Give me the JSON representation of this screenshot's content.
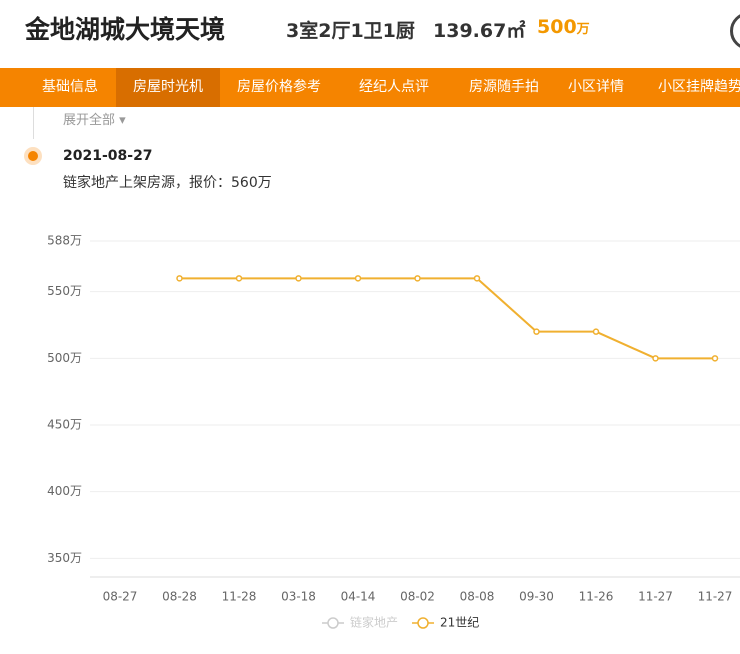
{
  "header": {
    "title": "金地湖城大境天境",
    "layout": "3室2厅1卫1厨",
    "area": "139.67㎡",
    "price": "500",
    "price_unit": "万"
  },
  "nav": {
    "items": [
      "基础信息",
      "房屋时光机",
      "房屋价格参考",
      "经纪人点评",
      "房源随手拍",
      "小区详情",
      "小区挂牌趋势"
    ],
    "active": 1
  },
  "timeline": {
    "expand": "展开全部",
    "date": "2021-08-27",
    "text": "链家地产上架房源，报价：560万"
  },
  "chart_data": {
    "type": "line",
    "categories": [
      "08-27",
      "08-28",
      "11-28",
      "03-18",
      "04-14",
      "08-02",
      "08-08",
      "09-30",
      "11-26",
      "11-27",
      "11-27"
    ],
    "series": [
      {
        "name": "链家地产",
        "color": "#cccccc",
        "hidden": true,
        "values": [
          null,
          null,
          null,
          null,
          null,
          null,
          null,
          null,
          null,
          null,
          null
        ]
      },
      {
        "name": "21世纪",
        "color": "#f0b030",
        "values": [
          null,
          560,
          560,
          560,
          560,
          560,
          560,
          520,
          520,
          500,
          500
        ]
      }
    ],
    "ylim": [
      336,
      588
    ],
    "yticks": [
      {
        "value": 350,
        "label": "350万"
      },
      {
        "value": 400,
        "label": "400万"
      },
      {
        "value": 450,
        "label": "450万"
      },
      {
        "value": 500,
        "label": "500万"
      },
      {
        "value": 550,
        "label": "550万"
      },
      {
        "value": 588,
        "label": "588万"
      }
    ],
    "grid": true
  }
}
